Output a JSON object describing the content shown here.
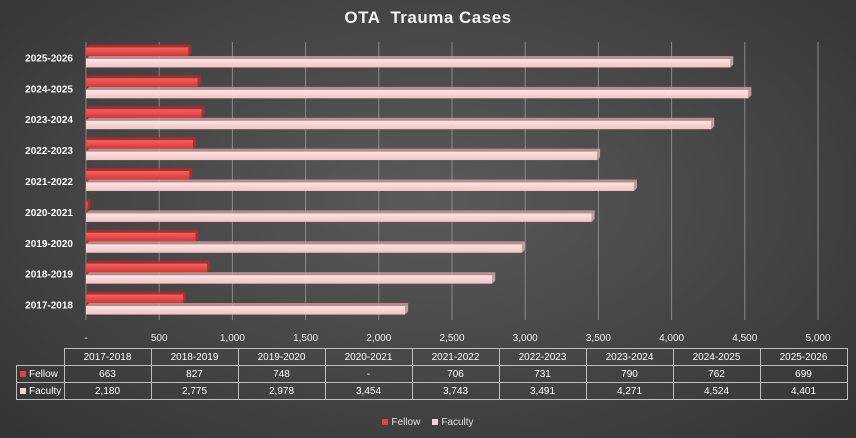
{
  "chart_data": {
    "type": "bar",
    "orientation": "horizontal",
    "title": "OTA  Trauma Cases",
    "categories": [
      "2017-2018",
      "2018-2019",
      "2019-2020",
      "2020-2021",
      "2021-2022",
      "2022-2023",
      "2023-2024",
      "2024-2025",
      "2025-2026"
    ],
    "series": [
      {
        "name": "Fellow",
        "values": [
          663,
          827,
          748,
          0,
          706,
          731,
          790,
          762,
          699
        ],
        "display": [
          "663",
          "827",
          "748",
          "-",
          "706",
          "731",
          "790",
          "762",
          "699"
        ],
        "color": "#e8403f"
      },
      {
        "name": "Faculty",
        "values": [
          2180,
          2775,
          2978,
          3454,
          3743,
          3491,
          4271,
          4524,
          4401
        ],
        "display": [
          "2,180",
          "2,775",
          "2,978",
          "3,454",
          "3,743",
          "3,491",
          "4,271",
          "4,524",
          "4,401"
        ],
        "color": "#f7cfd0"
      }
    ],
    "xlim": [
      0,
      5000
    ],
    "x_ticks": [
      "-",
      "500",
      "1,000",
      "1,500",
      "2,000",
      "2,500",
      "3,000",
      "3,500",
      "4,000",
      "4,500",
      "5,000"
    ],
    "grid": true,
    "legend": "bottom",
    "data_table": true
  }
}
